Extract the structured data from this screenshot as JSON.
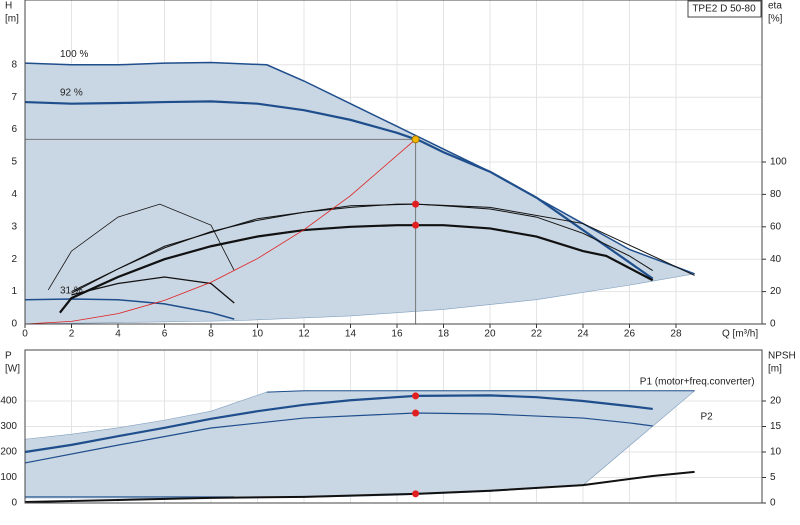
{
  "chart_data": [
    {
      "type": "line",
      "title": "TPE2 D 50-80",
      "ylabel": [
        "H",
        "[m]"
      ],
      "y2label": [
        "eta",
        "[%]"
      ],
      "xlabel": "Q [m³/h]",
      "xlim": [
        0,
        31.7
      ],
      "xticks": [
        0,
        2,
        4,
        6,
        8,
        10,
        12,
        14,
        16,
        18,
        20,
        22,
        24,
        26,
        28
      ],
      "ylim": [
        0,
        10
      ],
      "yticks": [
        0,
        1,
        2,
        3,
        4,
        5,
        6,
        7,
        8
      ],
      "y2lim": [
        0,
        200
      ],
      "y2ticks": [
        0,
        20,
        40,
        60,
        80,
        100
      ],
      "grid": true,
      "areas": [
        {
          "color": "#c9d6e3",
          "x": [
            0,
            2,
            4,
            6,
            8,
            10.4,
            12,
            14,
            16,
            18,
            20,
            22,
            24,
            26,
            28.8,
            26,
            22,
            18,
            14,
            9,
            0
          ],
          "values": [
            8.05,
            8.0,
            8.0,
            8.05,
            8.07,
            8.0,
            7.5,
            6.8,
            6.1,
            5.4,
            4.7,
            3.9,
            3.1,
            2.3,
            1.55,
            1.2,
            0.75,
            0.45,
            0.25,
            0.1,
            0
          ]
        }
      ],
      "series": [
        {
          "name": "100 %",
          "color": "#1f4e8c",
          "width": 1.5,
          "axis": "y",
          "x": [
            0,
            2,
            4,
            6,
            8,
            10.4,
            12,
            14,
            16,
            18,
            20,
            22,
            24,
            26,
            28.8
          ],
          "values": [
            8.05,
            8.0,
            8.0,
            8.05,
            8.07,
            8.0,
            7.5,
            6.8,
            6.1,
            5.4,
            4.7,
            3.9,
            3.1,
            2.3,
            1.55
          ]
        },
        {
          "name": "92 %",
          "color": "#1f4e8c",
          "width": 2.2,
          "axis": "y",
          "x": [
            0,
            2,
            4,
            6,
            8,
            10,
            12,
            14,
            16,
            17,
            18,
            20,
            22,
            24,
            26,
            27
          ],
          "values": [
            6.85,
            6.8,
            6.82,
            6.85,
            6.87,
            6.8,
            6.6,
            6.3,
            5.9,
            5.65,
            5.3,
            4.7,
            3.9,
            2.9,
            1.9,
            1.4
          ]
        },
        {
          "name": "31 %",
          "color": "#1f4e8c",
          "width": 1.5,
          "axis": "y",
          "x": [
            0,
            2,
            4,
            6,
            8,
            9
          ],
          "values": [
            0.75,
            0.77,
            0.75,
            0.62,
            0.35,
            0.15
          ]
        },
        {
          "color": "#111111",
          "width": 1,
          "axis": "y2",
          "x": [
            2,
            4,
            6,
            8,
            10,
            12,
            14,
            16,
            16.8,
            18,
            20,
            22,
            24,
            26,
            27
          ],
          "values": [
            19,
            34,
            47,
            57,
            64,
            69,
            72,
            74,
            74,
            73,
            71,
            66,
            56,
            42,
            33
          ]
        },
        {
          "color": "#111111",
          "width": 1,
          "axis": "y2",
          "x": [
            2,
            6,
            10,
            14,
            16.8,
            20,
            24,
            28.8
          ],
          "values": [
            20,
            48,
            65,
            73,
            74,
            72,
            62,
            30
          ]
        },
        {
          "color": "#111111",
          "width": 2.2,
          "axis": "y2",
          "x": [
            1.5,
            2,
            4,
            6,
            8,
            10,
            12,
            14,
            16,
            16.8,
            18,
            20,
            22,
            24,
            25,
            27
          ],
          "values": [
            7,
            16,
            29,
            40,
            48,
            54,
            58,
            60,
            61,
            61,
            61,
            59,
            54,
            45,
            42,
            27
          ]
        },
        {
          "color": "#111111",
          "width": 0.8,
          "axis": "y2",
          "x": [
            1,
            2,
            4,
            5.8,
            8,
            9
          ],
          "values": [
            21,
            45,
            66,
            74,
            61,
            33
          ]
        },
        {
          "color": "#111111",
          "width": 1.3,
          "axis": "y2",
          "x": [
            2,
            4,
            6,
            8,
            9
          ],
          "values": [
            18,
            25,
            29,
            25,
            13
          ]
        },
        {
          "color": "#e02020",
          "width": 0.8,
          "axis": "y",
          "x": [
            0,
            2,
            4,
            6,
            8,
            10,
            12,
            14,
            16.8
          ],
          "values": [
            0,
            0.08,
            0.32,
            0.73,
            1.29,
            2.02,
            2.91,
            3.96,
            5.7
          ]
        }
      ],
      "points": [
        {
          "x": 16.8,
          "y": 5.7,
          "axis": "y",
          "color": "#f5b800",
          "guide": true
        },
        {
          "x": 16.8,
          "y": 74,
          "axis": "y2",
          "color": "#e02020"
        },
        {
          "x": 16.8,
          "y": 61,
          "axis": "y2",
          "color": "#e02020"
        }
      ]
    },
    {
      "type": "line",
      "ylabel": [
        "P",
        "[W]"
      ],
      "y2label": [
        "NPSH",
        "[m]"
      ],
      "xlim": [
        0,
        31.7
      ],
      "xticks": [
        0,
        2,
        4,
        6,
        8,
        10,
        12,
        14,
        16,
        18,
        20,
        22,
        24,
        26,
        28
      ],
      "ylim": [
        0,
        600
      ],
      "yticks": [
        0,
        100,
        200,
        300,
        400
      ],
      "y2lim": [
        0,
        30
      ],
      "y2ticks": [
        0,
        5,
        10,
        15,
        20
      ],
      "grid": true,
      "areas": [
        {
          "color": "#c9d6e3",
          "x": [
            0,
            2,
            4,
            6,
            8,
            10.4,
            12,
            16.8,
            28.8,
            24,
            20,
            16,
            12,
            9,
            0
          ],
          "values": [
            250,
            270,
            295,
            325,
            360,
            435,
            440,
            440,
            440,
            70,
            45,
            30,
            22,
            20,
            20
          ]
        }
      ],
      "series": [
        {
          "name": "P1 (motor+freq.converter)",
          "color": "#1f4e8c",
          "width": 1,
          "axis": "y",
          "label_at": "end",
          "x": [
            10.4,
            12,
            16.8,
            28.8
          ],
          "values": [
            435,
            440,
            440,
            440
          ]
        },
        {
          "color": "#1f4e8c",
          "width": 2.2,
          "axis": "y",
          "x": [
            0,
            2,
            4,
            6,
            8,
            10,
            12,
            14,
            16.8,
            20,
            22,
            24,
            26,
            27
          ],
          "values": [
            200,
            228,
            262,
            295,
            330,
            360,
            385,
            403,
            420,
            422,
            415,
            400,
            380,
            369
          ]
        },
        {
          "name": "P2",
          "color": "#1f4e8c",
          "width": 1.2,
          "axis": "y",
          "label_at": "end",
          "x": [
            0,
            4,
            8,
            12,
            16.8,
            20,
            24,
            26,
            27
          ],
          "values": [
            157,
            227,
            294,
            333,
            353,
            349,
            333,
            314,
            302
          ]
        },
        {
          "color": "#1f4e8c",
          "width": 1,
          "axis": "y",
          "x": [
            0,
            9
          ],
          "values": [
            24,
            24
          ]
        },
        {
          "color": "#111111",
          "width": 2,
          "axis": "y2",
          "x": [
            0,
            4,
            8,
            12,
            16.8,
            20,
            24,
            27,
            28.8
          ],
          "values": [
            0.2,
            0.6,
            1,
            1.2,
            1.8,
            2.4,
            3.5,
            5.3,
            6.1
          ]
        }
      ],
      "points": [
        {
          "x": 16.8,
          "y": 420,
          "axis": "y",
          "color": "#e02020"
        },
        {
          "x": 16.8,
          "y": 353,
          "axis": "y",
          "color": "#e02020"
        },
        {
          "x": 16.8,
          "y": 1.8,
          "axis": "y2",
          "color": "#e02020"
        }
      ]
    }
  ]
}
